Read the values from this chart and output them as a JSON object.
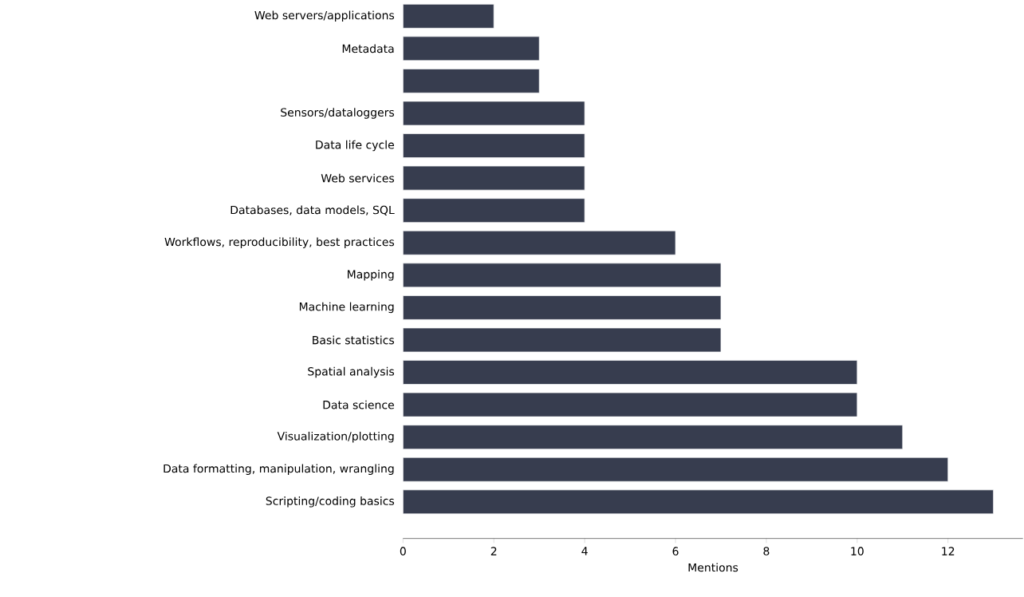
{
  "chart_data": {
    "type": "bar",
    "orientation": "horizontal",
    "xlabel": "Mentions",
    "categories": [
      "Web servers/applications",
      "Metadata",
      null,
      "Sensors/dataloggers",
      "Data life cycle",
      "Web services",
      "Databases, data models, SQL",
      "Workflows, reproducibility, best practices",
      "Mapping",
      "Machine learning",
      "Basic statistics",
      "Spatial analysis",
      "Data science",
      "Visualization/plotting",
      "Data formatting, manipulation, wrangling",
      "Scripting/coding basics"
    ],
    "values": [
      2,
      3,
      3,
      4,
      4,
      4,
      4,
      6,
      7,
      7,
      7,
      10,
      10,
      11,
      12,
      13
    ],
    "color": "#373d4f",
    "xlim": [
      0,
      13.65
    ],
    "xticks": [
      0,
      2,
      4,
      6,
      8,
      10,
      12
    ],
    "grid": false
  }
}
